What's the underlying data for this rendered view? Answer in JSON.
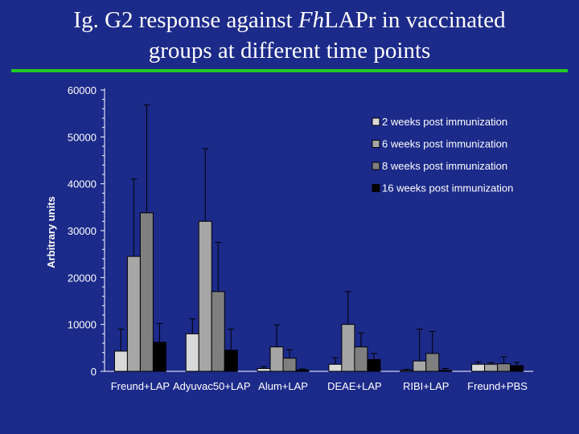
{
  "title": {
    "part1": "Ig. G2 response against ",
    "italic": "Fh",
    "part2": "LAPr in vaccinated",
    "line2": "groups at different time points"
  },
  "chart_data": {
    "type": "bar",
    "ylabel": "Arbitrary units",
    "xlabel": "",
    "ylim": [
      0,
      60000
    ],
    "yticks": [
      0,
      10000,
      20000,
      30000,
      40000,
      50000,
      60000
    ],
    "grid": false,
    "legend_position": "top-right",
    "categories": [
      "Freund+LAP",
      "Adyuvac50+LAP",
      "Alum+LAP",
      "DEAE+LAP",
      "RIBI+LAP",
      "Freund+PBS"
    ],
    "series": [
      {
        "name": "2 weeks post immunization",
        "color": "#d9d9d9",
        "values": [
          4300,
          8000,
          600,
          1500,
          200,
          1500
        ],
        "errors": [
          4700,
          3200,
          400,
          1400,
          200,
          500
        ]
      },
      {
        "name": "6 weeks post immunization",
        "color": "#a6a6a6",
        "values": [
          24500,
          32000,
          5200,
          10000,
          2200,
          1500
        ],
        "errors": [
          16500,
          15500,
          4700,
          7000,
          6800,
          300
        ]
      },
      {
        "name": "8 weeks post immunization",
        "color": "#7f7f7f",
        "values": [
          33800,
          17000,
          2800,
          5200,
          3800,
          1600
        ],
        "errors": [
          23000,
          10500,
          1800,
          3000,
          4700,
          1500
        ]
      },
      {
        "name": "16 weeks post immunization",
        "color": "#000000",
        "values": [
          6200,
          4500,
          300,
          2500,
          200,
          1200
        ],
        "errors": [
          4000,
          4500,
          200,
          1300,
          400,
          700
        ]
      }
    ]
  }
}
